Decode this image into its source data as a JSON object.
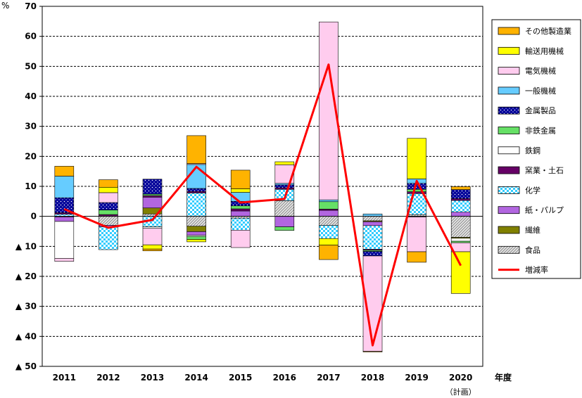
{
  "chart_data": {
    "type": "bar",
    "stacked": true,
    "y_unit_label": "%",
    "x_axis_label": "年度",
    "ylim": [
      -50,
      70
    ],
    "y_ticks": [
      70,
      60,
      50,
      40,
      30,
      20,
      10,
      0,
      -10,
      -20,
      -30,
      -40,
      -50
    ],
    "y_tick_labels": [
      "70",
      "60",
      "50",
      "40",
      "30",
      "20",
      "10",
      "0",
      "▲ 10",
      "▲ 20",
      "▲ 30",
      "▲ 40",
      "▲ 50"
    ],
    "categories": [
      "2011",
      "2012",
      "2013",
      "2014",
      "2015",
      "2016",
      "2017",
      "2018",
      "2019",
      "2020"
    ],
    "category_sublabels": [
      "",
      "",
      "",
      "",
      "",
      "",
      "",
      "",
      "",
      "（計画）"
    ],
    "grid": true,
    "legend_position": "right",
    "series": [
      {
        "name": "食品",
        "color": "#bbbbbb",
        "pattern": "hatch",
        "values": [
          -0.2,
          -3.0,
          0.8,
          -3.3,
          -0.6,
          5.2,
          -3.0,
          -1.5,
          0.6,
          -7.0
        ]
      },
      {
        "name": "繊維",
        "color": "#808000",
        "pattern": "solid",
        "values": [
          0,
          0,
          2.0,
          -1.8,
          0,
          0,
          0,
          -0.3,
          0,
          -0.3
        ]
      },
      {
        "name": "紙・パルプ",
        "color": "#b266e0",
        "pattern": "solid",
        "values": [
          -1.5,
          -0.5,
          3.6,
          -1.2,
          1.8,
          -3.5,
          2.0,
          -1.3,
          -0.2,
          1.4
        ]
      },
      {
        "name": "化学",
        "color": "#33ccff",
        "pattern": "check",
        "values": [
          0.7,
          -7.6,
          -3.5,
          7.8,
          -4.0,
          3.8,
          -4.4,
          -7.9,
          7.0,
          3.9
        ]
      },
      {
        "name": "窯業・土石",
        "color": "#660066",
        "pattern": "solid",
        "values": [
          0.5,
          0.6,
          0.5,
          0.5,
          0.7,
          0.5,
          0.4,
          -0.3,
          0.6,
          0.6
        ]
      },
      {
        "name": "鉄鋼",
        "color": "#ffffff",
        "pattern": "solid",
        "values": [
          -12.3,
          0,
          -0.5,
          -0.4,
          0,
          0,
          0,
          0,
          0,
          -1.0
        ]
      },
      {
        "name": "非鉄金属",
        "color": "#66e066",
        "pattern": "solid",
        "values": [
          0,
          1.5,
          0.5,
          -1.0,
          1.0,
          -1.2,
          2.5,
          -0.4,
          0.8,
          -0.5
        ]
      },
      {
        "name": "金属製品",
        "color": "#000099",
        "pattern": "dots",
        "values": [
          5.0,
          2.5,
          5.0,
          1.0,
          1.5,
          1.0,
          0,
          -1.5,
          2.0,
          3.0
        ]
      },
      {
        "name": "一般機械",
        "color": "#66ccff",
        "pattern": "solid",
        "values": [
          7.2,
          0,
          0,
          8.0,
          3.0,
          0.5,
          0.6,
          0.8,
          1.5,
          0
        ]
      },
      {
        "name": "電気機械",
        "color": "#ffccee",
        "pattern": "solid",
        "values": [
          -1.0,
          3.3,
          -5.5,
          0.3,
          -5.8,
          6.2,
          59.3,
          -31.8,
          -11.6,
          -3.0
        ]
      },
      {
        "name": "輸送用機械",
        "color": "#ffff00",
        "pattern": "solid",
        "values": [
          0,
          1.8,
          -1.4,
          -0.8,
          1.2,
          1.0,
          -2.2,
          0,
          13.5,
          -13.9
        ]
      },
      {
        "name": "その他製造業",
        "color": "#ffb300",
        "pattern": "solid",
        "values": [
          3.3,
          2.5,
          -0.6,
          9.3,
          6.2,
          0,
          -4.8,
          -0.2,
          -3.5,
          1.0
        ]
      }
    ],
    "line_series": {
      "name": "増減率",
      "color": "#ff0000",
      "values": [
        2.4,
        -3.8,
        -1.2,
        16.5,
        4.6,
        5.8,
        50.6,
        -43.0,
        11.8,
        -16.4
      ]
    }
  }
}
